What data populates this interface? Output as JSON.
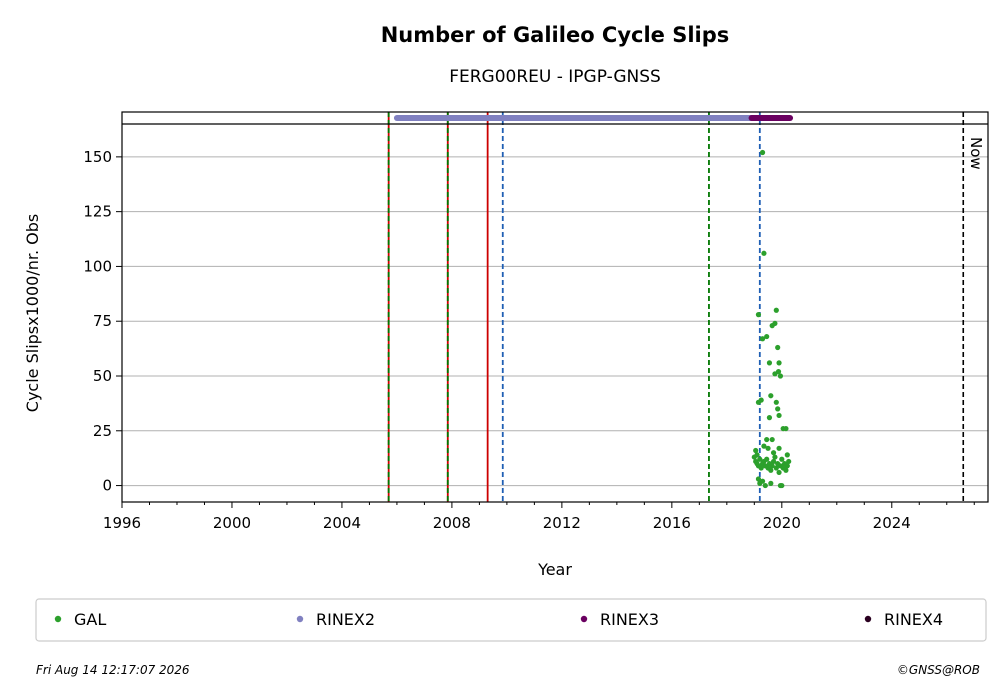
{
  "chart_data": {
    "type": "scatter",
    "title": "Number of Galileo Cycle Slips",
    "subtitle": "FERG00REU - IPGP-GNSS",
    "xlabel": "Year",
    "ylabel": "Cycle Slipsx1000/nr. Obs",
    "xlim": [
      1996,
      2027.5
    ],
    "ylim": [
      -7.5,
      165
    ],
    "xticks": [
      1996,
      2000,
      2004,
      2008,
      2012,
      2016,
      2020,
      2024
    ],
    "yticks": [
      0,
      25,
      50,
      75,
      100,
      125,
      150
    ],
    "grid": "horizontal",
    "now_label": "Now",
    "now_x": 2026.6,
    "vertical_lines": [
      {
        "x": 2005.7,
        "color": "#cc0000",
        "style": "solid"
      },
      {
        "x": 2005.7,
        "color": "#007700",
        "style": "dashed"
      },
      {
        "x": 2007.85,
        "color": "#cc0000",
        "style": "solid"
      },
      {
        "x": 2007.85,
        "color": "#007700",
        "style": "dashed"
      },
      {
        "x": 2009.3,
        "color": "#cc0000",
        "style": "solid"
      },
      {
        "x": 2009.85,
        "color": "#1f5fb4",
        "style": "dashed"
      },
      {
        "x": 2017.35,
        "color": "#007700",
        "style": "dashed"
      },
      {
        "x": 2019.2,
        "color": "#1f5fb4",
        "style": "dashed"
      }
    ],
    "rinex_bars": [
      {
        "name": "RINEX2",
        "color": "#8080c0",
        "x_start": 2006.0,
        "x_end": 2019.0
      },
      {
        "name": "RINEX3",
        "color": "#6a0060",
        "x_start": 2018.9,
        "x_end": 2020.3
      }
    ],
    "series": [
      {
        "name": "GAL",
        "color": "#2ca02c",
        "points": [
          [
            2019.15,
            78
          ],
          [
            2019.3,
            152
          ],
          [
            2019.35,
            106
          ],
          [
            2019.3,
            67
          ],
          [
            2019.45,
            68
          ],
          [
            2019.65,
            73
          ],
          [
            2019.75,
            74
          ],
          [
            2019.8,
            80
          ],
          [
            2019.85,
            63
          ],
          [
            2019.55,
            56
          ],
          [
            2019.9,
            56
          ],
          [
            2019.75,
            51
          ],
          [
            2019.88,
            52
          ],
          [
            2019.95,
            50
          ],
          [
            2019.6,
            41
          ],
          [
            2019.8,
            38
          ],
          [
            2019.15,
            38
          ],
          [
            2019.25,
            39
          ],
          [
            2019.85,
            35
          ],
          [
            2019.9,
            32
          ],
          [
            2019.55,
            31
          ],
          [
            2020.05,
            26
          ],
          [
            2020.15,
            26
          ],
          [
            2019.45,
            21
          ],
          [
            2019.65,
            21
          ],
          [
            2019.9,
            17
          ],
          [
            2019.05,
            16
          ],
          [
            2019.1,
            14
          ],
          [
            2019.0,
            13
          ],
          [
            2019.05,
            11
          ],
          [
            2019.1,
            10
          ],
          [
            2019.15,
            9
          ],
          [
            2019.2,
            12
          ],
          [
            2019.25,
            8
          ],
          [
            2019.3,
            10
          ],
          [
            2019.35,
            11
          ],
          [
            2019.4,
            9
          ],
          [
            2019.45,
            12
          ],
          [
            2019.5,
            8
          ],
          [
            2019.55,
            10
          ],
          [
            2019.6,
            7
          ],
          [
            2019.65,
            9
          ],
          [
            2019.7,
            11
          ],
          [
            2019.75,
            13
          ],
          [
            2019.8,
            8
          ],
          [
            2019.85,
            10
          ],
          [
            2019.9,
            6
          ],
          [
            2019.95,
            9
          ],
          [
            2020.0,
            12
          ],
          [
            2020.05,
            8
          ],
          [
            2020.1,
            10
          ],
          [
            2020.15,
            7
          ],
          [
            2020.2,
            9
          ],
          [
            2020.25,
            11
          ],
          [
            2019.15,
            3
          ],
          [
            2019.2,
            1
          ],
          [
            2019.3,
            2
          ],
          [
            2019.4,
            0
          ],
          [
            2019.6,
            1
          ],
          [
            2019.95,
            0
          ],
          [
            2020.0,
            0
          ],
          [
            2019.7,
            15
          ],
          [
            2019.35,
            18
          ],
          [
            2019.5,
            17
          ],
          [
            2020.2,
            14
          ]
        ]
      }
    ],
    "legend": [
      {
        "name": "GAL",
        "color": "#2ca02c"
      },
      {
        "name": "RINEX2",
        "color": "#8080c0"
      },
      {
        "name": "RINEX3",
        "color": "#6a0060"
      },
      {
        "name": "RINEX4",
        "color": "#2a0020"
      }
    ]
  },
  "footer": {
    "timestamp": "Fri Aug 14 12:17:07 2026",
    "credit": "©GNSS@ROB"
  }
}
